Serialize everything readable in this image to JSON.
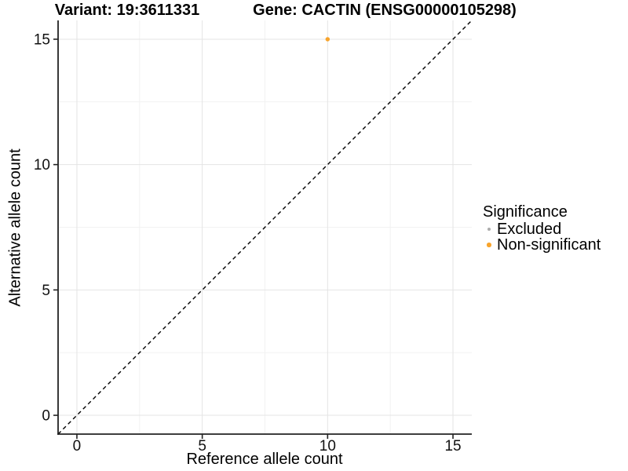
{
  "titles": {
    "variant": "Variant: 19:3611331",
    "gene": "Gene: CACTIN (ENSG00000105298)"
  },
  "chart_data": {
    "type": "scatter",
    "title_left": "Variant: 19:3611331",
    "title_right": "Gene: CACTIN (ENSG00000105298)",
    "xlabel": "Reference allele count",
    "ylabel": "Alternative allele count",
    "xlim": [
      -0.75,
      15.75
    ],
    "ylim": [
      -0.75,
      15.75
    ],
    "x_major_ticks": [
      0,
      5,
      10,
      15
    ],
    "y_major_ticks": [
      0,
      5,
      10,
      15
    ],
    "x_minor_ticks": [
      2.5,
      7.5,
      12.5
    ],
    "y_minor_ticks": [
      2.5,
      7.5,
      12.5
    ],
    "grid": "major+minor",
    "legend_position": "right",
    "reference_line": {
      "type": "identity",
      "style": "dashed",
      "color": "#000000",
      "from": [
        -0.75,
        -0.75
      ],
      "to": [
        15.75,
        15.75
      ]
    },
    "legend": {
      "title": "Significance"
    },
    "series": [
      {
        "name": "Excluded",
        "color": "#ACACAC",
        "marker_diameter": 4.5,
        "points": []
      },
      {
        "name": "Non-significant",
        "color": "#F8A42C",
        "marker_diameter": 5.5,
        "points": [
          [
            10,
            15
          ]
        ]
      }
    ]
  },
  "style": {
    "background": "#FFFFFF",
    "grid_major_color": "#E4E4E4",
    "grid_minor_color": "#F2F2F2",
    "axis_color": "#222222",
    "tick_label_color": "#111111",
    "text_color": "#000000"
  }
}
